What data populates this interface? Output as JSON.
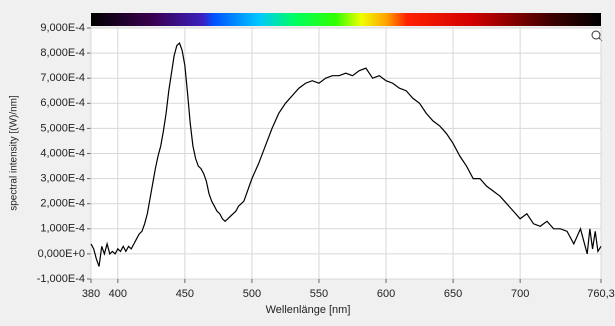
{
  "chart_data": {
    "type": "line",
    "y_label": "spectral intensity [(W)/nm]",
    "x_label": "Wellenlänge [nm]",
    "color": "#000000",
    "grid": true,
    "xlim": [
      380,
      760.3
    ],
    "ylim": [
      -0.0001,
      0.0009
    ],
    "xticks": [
      380,
      400,
      450,
      500,
      550,
      600,
      650,
      700,
      {
        "value": 760.3,
        "label": "760,3"
      }
    ],
    "yticks": [
      {
        "value": -0.0001,
        "label": "-1,000E-4"
      },
      {
        "value": 0,
        "label": "0,000E+0"
      },
      {
        "value": 0.0001,
        "label": "1,000E-4"
      },
      {
        "value": 0.0002,
        "label": "2,000E-4"
      },
      {
        "value": 0.0003,
        "label": "3,000E-4"
      },
      {
        "value": 0.0004,
        "label": "4,000E-4"
      },
      {
        "value": 0.0005,
        "label": "5,000E-4"
      },
      {
        "value": 0.0006,
        "label": "6,000E-4"
      },
      {
        "value": 0.0007,
        "label": "7,000E-4"
      },
      {
        "value": 0.0008,
        "label": "8,000E-4"
      },
      {
        "value": 0.0009,
        "label": "9,000E-4"
      }
    ],
    "x": [
      380,
      382,
      384,
      386,
      388,
      390,
      392,
      394,
      396,
      398,
      400,
      402,
      404,
      406,
      408,
      410,
      412,
      414,
      416,
      418,
      420,
      422,
      424,
      426,
      428,
      430,
      432,
      434,
      436,
      438,
      440,
      442,
      444,
      446,
      448,
      450,
      452,
      454,
      456,
      458,
      460,
      462,
      464,
      466,
      468,
      470,
      472,
      474,
      476,
      478,
      480,
      482,
      484,
      486,
      488,
      490,
      492,
      494,
      496,
      498,
      500,
      505,
      510,
      515,
      520,
      525,
      530,
      535,
      540,
      545,
      550,
      555,
      560,
      565,
      570,
      575,
      580,
      585,
      590,
      595,
      600,
      605,
      610,
      615,
      620,
      625,
      630,
      635,
      640,
      645,
      650,
      655,
      660,
      665,
      670,
      675,
      680,
      685,
      690,
      695,
      700,
      705,
      710,
      715,
      720,
      725,
      730,
      735,
      740,
      745,
      750,
      752,
      754,
      756,
      758,
      760.3
    ],
    "values": [
      4e-05,
      2e-05,
      -2e-05,
      -5e-05,
      3e-05,
      0,
      4e-05,
      0,
      1e-05,
      0,
      2e-05,
      1e-05,
      3e-05,
      1e-05,
      3e-05,
      2e-05,
      4e-05,
      6e-05,
      8e-05,
      9e-05,
      0.00012,
      0.00016,
      0.00022,
      0.00028,
      0.00034,
      0.00039,
      0.00043,
      0.00049,
      0.00056,
      0.00065,
      0.00072,
      0.00079,
      0.00083,
      0.00084,
      0.00081,
      0.00075,
      0.00064,
      0.00052,
      0.00043,
      0.00038,
      0.00035,
      0.00034,
      0.00032,
      0.00029,
      0.00024,
      0.00021,
      0.00019,
      0.00017,
      0.00016,
      0.00014,
      0.00013,
      0.00014,
      0.00015,
      0.00016,
      0.00017,
      0.00019,
      0.0002,
      0.00021,
      0.00024,
      0.00027,
      0.0003,
      0.00036,
      0.00043,
      0.0005,
      0.00056,
      0.0006,
      0.00063,
      0.00066,
      0.00068,
      0.00069,
      0.00068,
      0.0007,
      0.00071,
      0.00071,
      0.00072,
      0.00071,
      0.00073,
      0.00074,
      0.0007,
      0.00071,
      0.00069,
      0.00068,
      0.00066,
      0.00065,
      0.00062,
      0.0006,
      0.00056,
      0.00053,
      0.00051,
      0.00048,
      0.00044,
      0.00039,
      0.00035,
      0.0003,
      0.0003,
      0.00027,
      0.00025,
      0.00023,
      0.0002,
      0.00017,
      0.00014,
      0.00016,
      0.00012,
      0.00011,
      0.00013,
      0.0001,
      0.0001,
      9e-05,
      4e-05,
      0.0001,
      0,
      0.0001,
      2e-05,
      9e-05,
      1e-05,
      3e-05
    ]
  }
}
